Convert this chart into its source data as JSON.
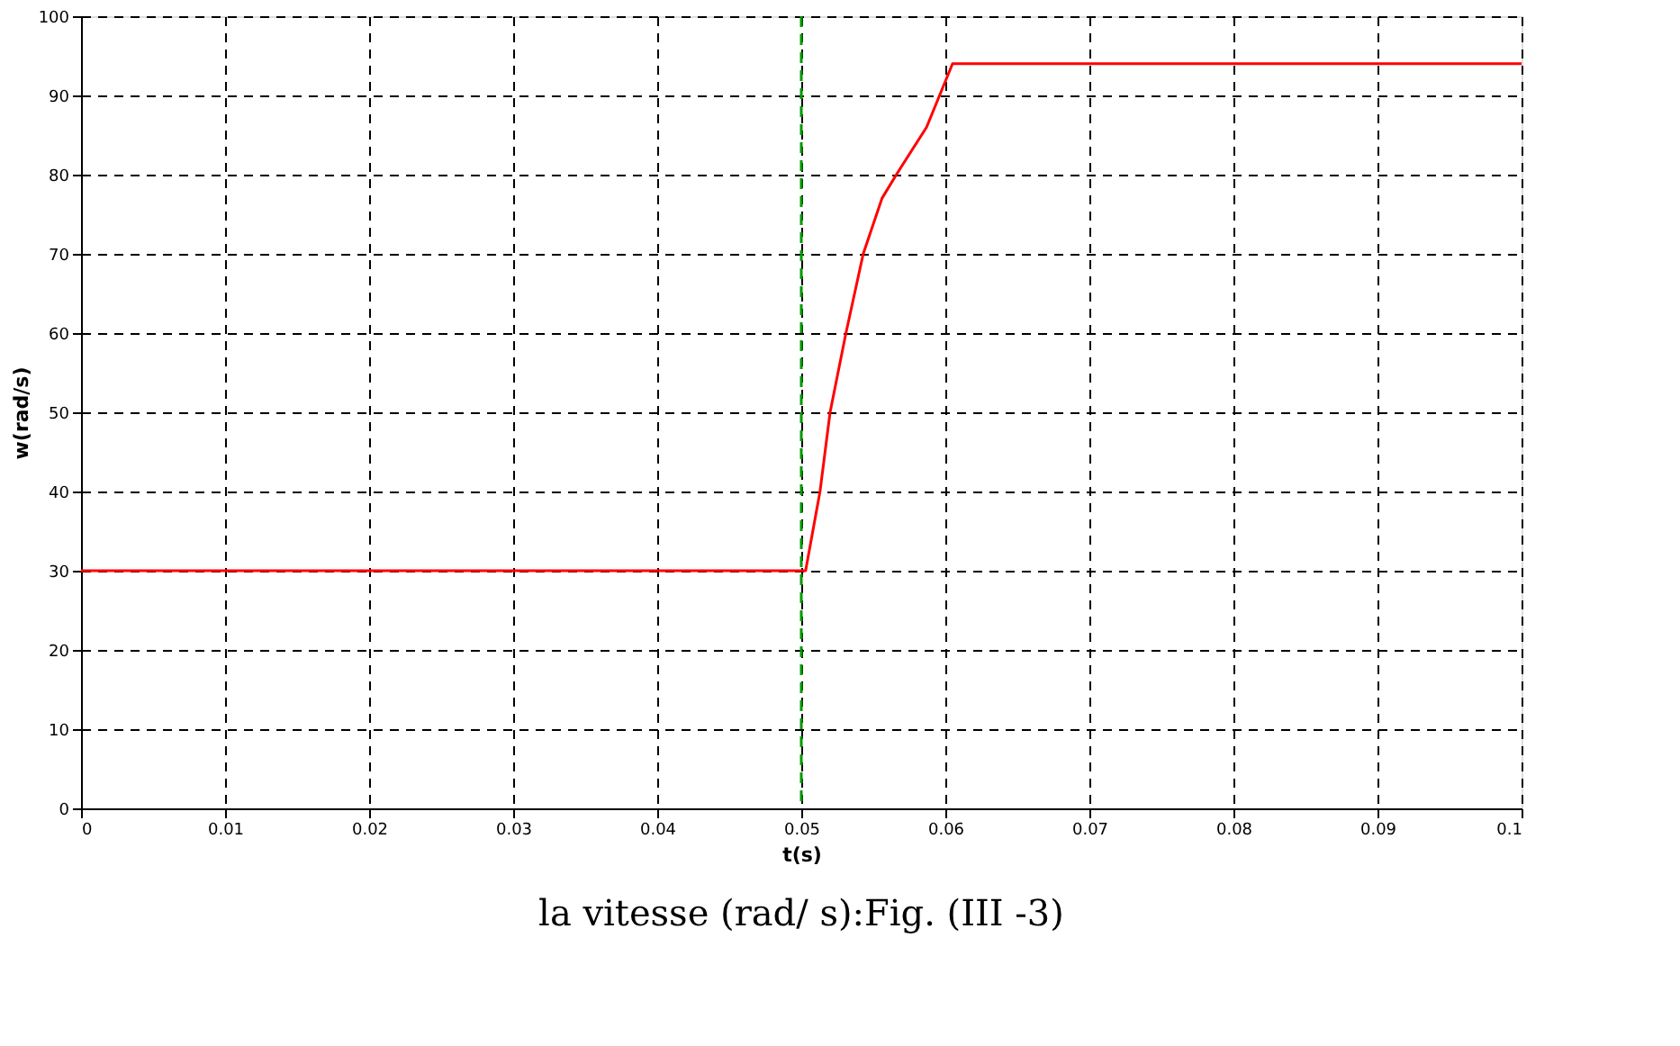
{
  "chart_data": {
    "type": "line",
    "xlabel": "t(s)",
    "ylabel": "w(rad/s)",
    "series": [
      {
        "color": "#ff0000",
        "x": [
          0,
          0.05,
          0.0503,
          0.0513,
          0.052,
          0.0531,
          0.0543,
          0.0556,
          0.0566,
          0.0587,
          0.0605,
          0.1
        ],
        "values": [
          30,
          30,
          30,
          40,
          50,
          60,
          70,
          77,
          80,
          86,
          94,
          94
        ]
      }
    ],
    "xlim": [
      0,
      0.1
    ],
    "xticks": [
      0,
      0.01,
      0.02,
      0.03,
      0.04,
      0.05,
      0.06,
      0.07,
      0.08,
      0.09,
      0.1
    ],
    "ylim": [
      0,
      100
    ],
    "yticks": [
      0,
      10,
      20,
      30,
      40,
      50,
      60,
      70,
      80,
      90,
      100
    ],
    "grid": true,
    "line_style": "solid",
    "marker": "none",
    "ref_lines": [
      {
        "axis": "x",
        "value": 0.05,
        "color": "#009900",
        "line_style": "dashed"
      }
    ],
    "annotations": [
      "la vitesse (rad/ s):Fig. (III -3)"
    ]
  }
}
